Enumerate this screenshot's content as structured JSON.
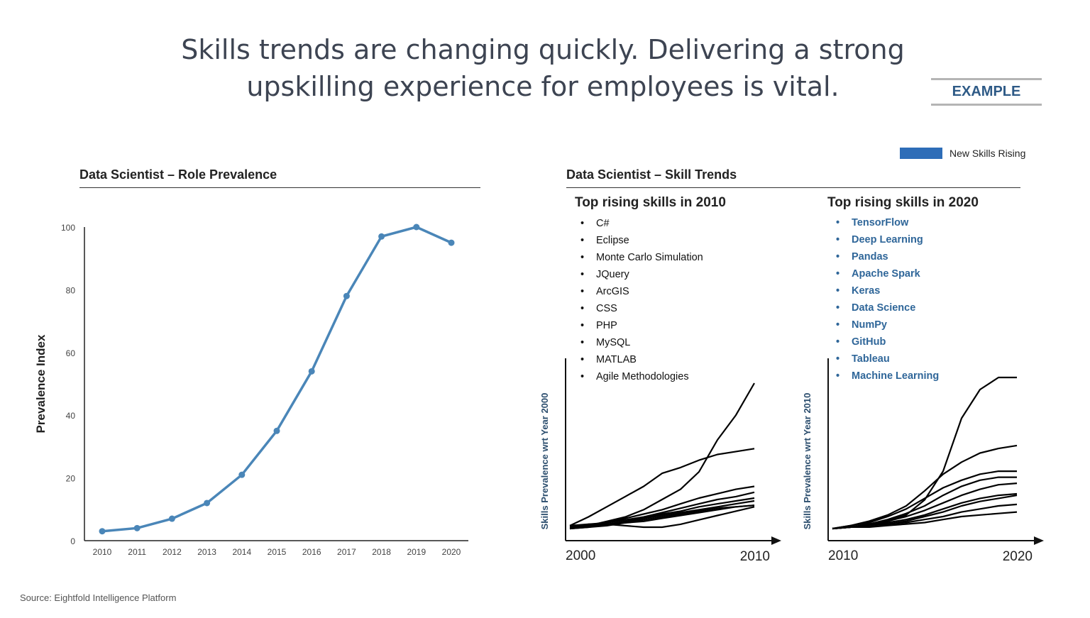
{
  "header": {
    "title_line1": "Skills trends are changing quickly. Delivering a strong",
    "title_line2": "upskilling experience for employees is vital.",
    "badge": "EXAMPLE"
  },
  "legend": {
    "label": "New Skills Rising",
    "color": "#2e6db8"
  },
  "left": {
    "section_title": "Data Scientist – Role Prevalence"
  },
  "right": {
    "section_title": "Data Scientist – Skill Trends",
    "list2010": {
      "title": "Top rising skills in 2010",
      "items": [
        "C#",
        "Eclipse",
        "Monte Carlo Simulation",
        "JQuery",
        "ArcGIS",
        "CSS",
        "PHP",
        "MySQL",
        "MATLAB",
        "Agile Methodologies"
      ]
    },
    "list2020": {
      "title": "Top rising skills in 2020",
      "items": [
        "TensorFlow",
        "Deep Learning",
        "Pandas",
        "Apache Spark",
        "Keras",
        "Data Science",
        "NumPy",
        "GitHub",
        "Tableau",
        "Machine Learning"
      ]
    }
  },
  "source": "Source: Eightfold Intelligence Platform",
  "chart_data": [
    {
      "type": "line",
      "title": "",
      "xlabel": "",
      "ylabel": "Prevalence Index",
      "categories": [
        "2010",
        "2011",
        "2012",
        "2013",
        "2014",
        "2015",
        "2016",
        "2017",
        "2018",
        "2019",
        "2020"
      ],
      "values": [
        3,
        4,
        7,
        12,
        21,
        35,
        54,
        78,
        97,
        100,
        95
      ],
      "ylim": [
        0,
        100
      ],
      "yticks": [
        0,
        20,
        40,
        60,
        80,
        100
      ],
      "grid": false,
      "color": "#4a86b8",
      "markers": true
    },
    {
      "type": "line",
      "ylabel": "Skills Prevalence wrt Year 2000",
      "xticks": [
        "2000",
        "2010"
      ],
      "color": "#000000",
      "series": [
        {
          "values": [
            0,
            2,
            5,
            8,
            13,
            20,
            27,
            39,
            61,
            78,
            100
          ]
        },
        {
          "values": [
            2,
            8,
            15,
            22,
            29,
            38,
            42,
            47,
            51,
            53,
            55
          ]
        },
        {
          "values": [
            0,
            2,
            4,
            7,
            10,
            13,
            17,
            21,
            24,
            27,
            29
          ]
        },
        {
          "values": [
            1,
            3,
            4,
            6,
            8,
            11,
            14,
            17,
            20,
            22,
            25
          ]
        },
        {
          "values": [
            0,
            1,
            3,
            5,
            7,
            10,
            12,
            15,
            17,
            19,
            21
          ]
        },
        {
          "values": [
            1,
            2,
            3,
            5,
            7,
            9,
            11,
            13,
            15,
            17,
            19
          ]
        },
        {
          "values": [
            0,
            1,
            2,
            4,
            5,
            7,
            9,
            11,
            13,
            15,
            16
          ]
        },
        {
          "values": [
            2,
            3,
            3,
            2,
            1,
            1,
            3,
            6,
            9,
            12,
            15
          ]
        },
        {
          "values": [
            1,
            2,
            3,
            4,
            6,
            8,
            10,
            12,
            14,
            15,
            16
          ]
        }
      ]
    },
    {
      "type": "line",
      "ylabel": "Skills Prevalence wrt Year 2010",
      "xticks": [
        "2010",
        "2020"
      ],
      "color": "#000000",
      "series": [
        {
          "values": [
            0,
            1,
            2,
            5,
            9,
            19,
            38,
            73,
            92,
            100,
            100
          ]
        },
        {
          "values": [
            0,
            2,
            5,
            9,
            15,
            25,
            36,
            44,
            50,
            53,
            55
          ]
        },
        {
          "values": [
            0,
            2,
            4,
            8,
            13,
            20,
            27,
            32,
            36,
            38,
            38
          ]
        },
        {
          "values": [
            0,
            1,
            3,
            6,
            10,
            15,
            22,
            28,
            32,
            34,
            34
          ]
        },
        {
          "values": [
            0,
            1,
            3,
            5,
            8,
            12,
            17,
            22,
            26,
            29,
            30
          ]
        },
        {
          "values": [
            0,
            1,
            2,
            4,
            6,
            9,
            13,
            17,
            20,
            22,
            23
          ]
        },
        {
          "values": [
            0,
            1,
            2,
            3,
            5,
            8,
            11,
            15,
            18,
            20,
            22
          ]
        },
        {
          "values": [
            0,
            1,
            2,
            3,
            4,
            6,
            8,
            11,
            13,
            15,
            16
          ]
        },
        {
          "values": [
            0,
            1,
            1,
            2,
            3,
            4,
            6,
            8,
            9,
            10,
            11
          ]
        }
      ]
    }
  ]
}
